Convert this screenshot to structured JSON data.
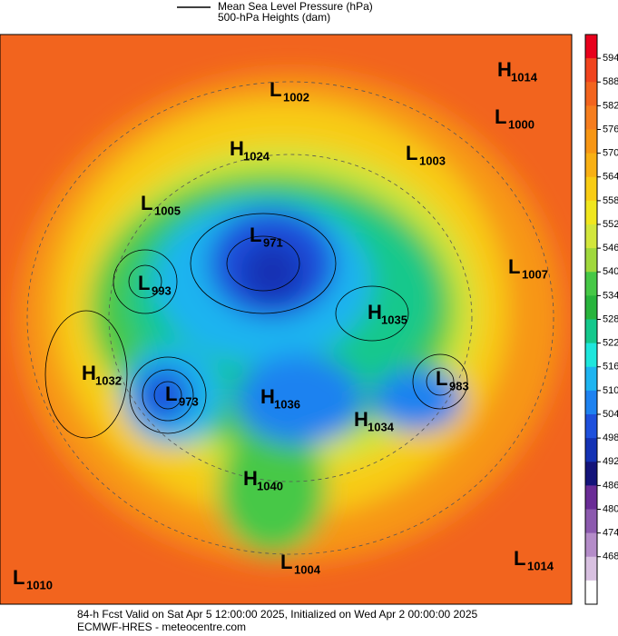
{
  "legend": {
    "line_label": "Mean Sea Level Pressure (hPa)",
    "fill_label": "500-hPa Heights (dam)"
  },
  "colorbar": {
    "ticks": [
      594,
      588,
      582,
      576,
      570,
      564,
      558,
      552,
      546,
      540,
      534,
      528,
      522,
      516,
      510,
      504,
      498,
      492,
      486,
      480,
      474,
      468
    ],
    "colors": [
      "#e8001c",
      "#f0441e",
      "#f2641e",
      "#f57d1e",
      "#f79614",
      "#f8b014",
      "#f8cc14",
      "#f0e61e",
      "#d2e63c",
      "#a0d83c",
      "#46c846",
      "#28b43c",
      "#14c88c",
      "#1ee6dc",
      "#1eb4f0",
      "#1e82f0",
      "#1e50dc",
      "#1432b4",
      "#14147a",
      "#6a2c96",
      "#8c5aae",
      "#b48cc8",
      "#d8c0e0",
      "#ffffff"
    ]
  },
  "systems": [
    {
      "kind": "L",
      "value": "1002"
    },
    {
      "kind": "H",
      "value": "1014"
    },
    {
      "kind": "L",
      "value": "1000"
    },
    {
      "kind": "H",
      "value": "1024"
    },
    {
      "kind": "L",
      "value": "1003"
    },
    {
      "kind": "L",
      "value": "1005"
    },
    {
      "kind": "L",
      "value": "971"
    },
    {
      "kind": "L",
      "value": "1007"
    },
    {
      "kind": "L",
      "value": "993"
    },
    {
      "kind": "H",
      "value": "1035"
    },
    {
      "kind": "H",
      "value": "1032"
    },
    {
      "kind": "L",
      "value": "973"
    },
    {
      "kind": "H",
      "value": "1036"
    },
    {
      "kind": "L",
      "value": "983"
    },
    {
      "kind": "H",
      "value": "1034"
    },
    {
      "kind": "H",
      "value": "1040"
    },
    {
      "kind": "L",
      "value": "1004"
    },
    {
      "kind": "L",
      "value": "1014"
    },
    {
      "kind": "L",
      "value": "1010"
    }
  ],
  "footer": {
    "line1": "84-h Fcst Valid on Sat Apr  5 12:00:00 2025, Initialized on Wed Apr  2 00:00:00 2025",
    "line2": "ECMWF-HRES  - meteocentre.com"
  }
}
